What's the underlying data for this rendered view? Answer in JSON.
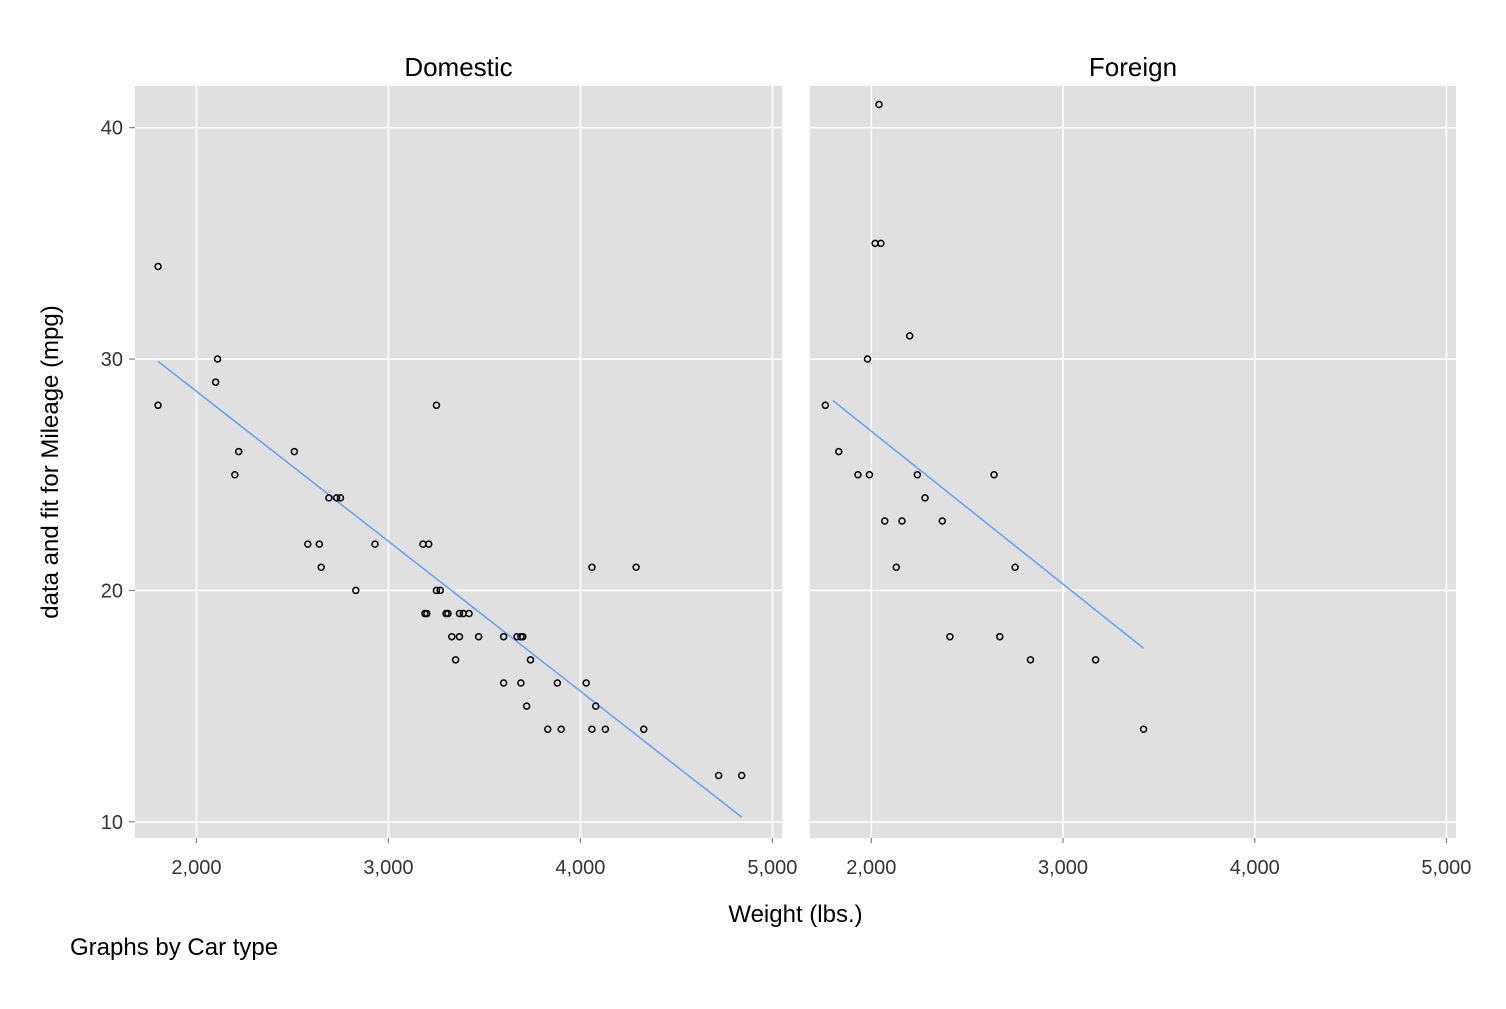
{
  "chart_data": {
    "type": "scatter",
    "xlabel": "Weight (lbs.)",
    "ylabel": "data and fit for Mileage (mpg)",
    "note": "Graphs by Car type",
    "xlim": [
      1680,
      5050
    ],
    "ylim": [
      9.3,
      41.8
    ],
    "x_ticks": [
      2000,
      3000,
      4000,
      5000
    ],
    "x_tick_labels": [
      "2,000",
      "3,000",
      "4,000",
      "5,000"
    ],
    "y_ticks": [
      10,
      20,
      30,
      40
    ],
    "y_tick_labels": [
      "10",
      "20",
      "30",
      "40"
    ],
    "grid": true,
    "panel_background": "#e0e0e0",
    "grid_color": "#ffffff",
    "fit_color": "#6ea1f0",
    "marker_color": "#000000",
    "panels": [
      {
        "title": "Domestic",
        "scatter": [
          [
            1800,
            34
          ],
          [
            1800,
            28
          ],
          [
            2110,
            30
          ],
          [
            2100,
            29
          ],
          [
            2220,
            26
          ],
          [
            2200,
            25
          ],
          [
            2510,
            26
          ],
          [
            2580,
            22
          ],
          [
            2640,
            22
          ],
          [
            2650,
            21
          ],
          [
            2690,
            24
          ],
          [
            2730,
            24
          ],
          [
            2750,
            24
          ],
          [
            2830,
            20
          ],
          [
            2930,
            22
          ],
          [
            3180,
            22
          ],
          [
            3210,
            22
          ],
          [
            3190,
            19
          ],
          [
            3200,
            19
          ],
          [
            3250,
            28
          ],
          [
            3250,
            20
          ],
          [
            3270,
            20
          ],
          [
            3300,
            19
          ],
          [
            3310,
            19
          ],
          [
            3330,
            18
          ],
          [
            3350,
            17
          ],
          [
            3370,
            18
          ],
          [
            3370,
            19
          ],
          [
            3390,
            19
          ],
          [
            3420,
            19
          ],
          [
            3470,
            18
          ],
          [
            3600,
            18
          ],
          [
            3600,
            16
          ],
          [
            3670,
            18
          ],
          [
            3690,
            18
          ],
          [
            3700,
            18
          ],
          [
            3690,
            16
          ],
          [
            3720,
            15
          ],
          [
            3740,
            17
          ],
          [
            3830,
            14
          ],
          [
            3880,
            16
          ],
          [
            3900,
            14
          ],
          [
            4030,
            16
          ],
          [
            4060,
            21
          ],
          [
            4060,
            14
          ],
          [
            4080,
            15
          ],
          [
            4130,
            14
          ],
          [
            4290,
            21
          ],
          [
            4330,
            14
          ],
          [
            4720,
            12
          ],
          [
            4840,
            12
          ]
        ],
        "fit": [
          [
            1800,
            29.9
          ],
          [
            4840,
            10.2
          ]
        ]
      },
      {
        "title": "Foreign",
        "scatter": [
          [
            1760,
            28
          ],
          [
            1830,
            26
          ],
          [
            1930,
            25
          ],
          [
            1980,
            30
          ],
          [
            1990,
            25
          ],
          [
            2020,
            35
          ],
          [
            2040,
            41
          ],
          [
            2050,
            35
          ],
          [
            2070,
            23
          ],
          [
            2130,
            21
          ],
          [
            2160,
            23
          ],
          [
            2200,
            31
          ],
          [
            2240,
            25
          ],
          [
            2280,
            24
          ],
          [
            2370,
            23
          ],
          [
            2410,
            18
          ],
          [
            2640,
            25
          ],
          [
            2670,
            18
          ],
          [
            2750,
            21
          ],
          [
            2830,
            17
          ],
          [
            3170,
            17
          ],
          [
            3420,
            14
          ]
        ],
        "fit": [
          [
            1800,
            28.2
          ],
          [
            3420,
            17.5
          ]
        ]
      }
    ]
  }
}
